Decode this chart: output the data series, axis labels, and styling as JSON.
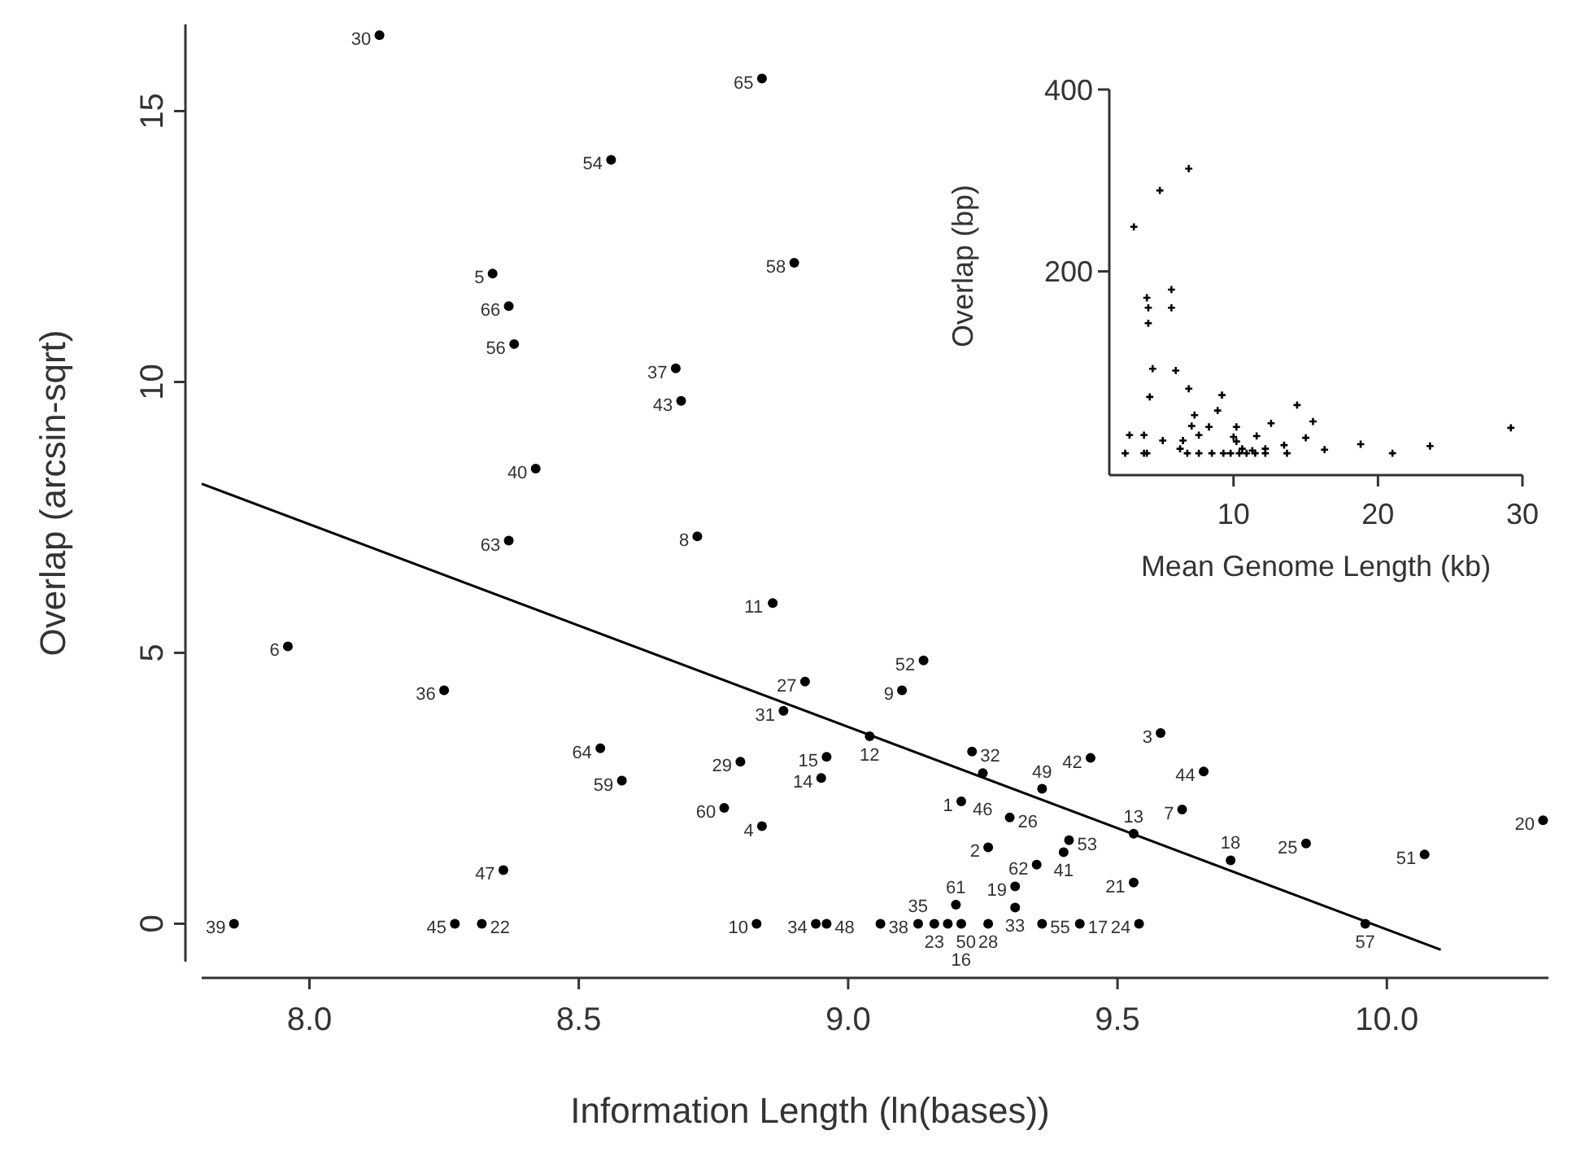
{
  "chart_data": [
    {
      "type": "scatter",
      "xlabel": "Information Length (ln(bases))",
      "ylabel": "Overlap (arcsin-sqrt)",
      "xlim": [
        7.8,
        10.3
      ],
      "ylim": [
        -0.7,
        16.6
      ],
      "xticks": [
        {
          "value": 8,
          "label": "8.0"
        },
        8.5,
        {
          "value": 9,
          "label": "9.0"
        },
        9.5,
        {
          "value": 10,
          "label": "10.0"
        }
      ],
      "yticks": [
        0,
        5,
        10,
        15
      ],
      "series": [
        {
          "color": "#000000",
          "x": [
            8.13,
            8.84,
            8.56,
            8.9,
            8.34,
            8.37,
            8.38,
            8.68,
            8.69,
            8.42,
            8.37,
            7.96,
            8.25,
            8.54,
            8.58,
            8.36,
            7.86,
            8.27,
            8.32,
            8.72,
            8.86,
            9.14,
            9.1,
            8.92,
            8.88,
            9.04,
            8.96,
            8.95,
            8.8,
            8.77,
            8.84,
            9.23,
            9.25,
            9.45,
            9.36,
            9.21,
            9.3,
            9.41,
            9.26,
            9.35,
            9.4,
            9.31,
            9.31,
            9.2,
            8.83,
            8.94,
            8.96,
            9.06,
            9.13,
            9.16,
            9.185,
            9.21,
            9.26,
            9.36,
            9.43,
            9.54,
            9.58,
            9.66,
            9.62,
            9.53,
            9.71,
            9.85,
            10.07,
            10.29,
            9.53,
            9.96
          ],
          "values": [
            16.4,
            15.6,
            14.1,
            12.2,
            12.0,
            11.4,
            10.7,
            10.25,
            9.65,
            8.4,
            7.07,
            5.12,
            4.31,
            3.24,
            2.64,
            0.99,
            0,
            0,
            0,
            7.15,
            5.92,
            4.86,
            4.31,
            4.47,
            3.93,
            3.46,
            3.08,
            2.69,
            2.99,
            2.14,
            1.8,
            3.18,
            2.78,
            3.06,
            2.49,
            2.26,
            1.96,
            1.54,
            1.41,
            1.09,
            1.32,
            0.69,
            0.3,
            0.35,
            0,
            0,
            0,
            0,
            0,
            0,
            0,
            0,
            0,
            0,
            0,
            0,
            3.52,
            2.81,
            2.11,
            1.66,
            1.17,
            1.48,
            1.28,
            1.91,
            0.76,
            0
          ]
        },
        {
          "type": "line",
          "marker": "none",
          "color": "#000000",
          "x": [
            7.8,
            10.1
          ],
          "values": [
            8.12,
            -0.48
          ]
        }
      ],
      "marker": "circle",
      "annotations": [
        {
          "text": "30",
          "x": 8.13,
          "y": 16.4
        },
        {
          "text": "65",
          "x": 8.84,
          "y": 15.6
        },
        {
          "text": "54",
          "x": 8.56,
          "y": 14.1
        },
        {
          "text": "58",
          "x": 8.9,
          "y": 12.2
        },
        {
          "text": "5",
          "x": 8.34,
          "y": 12.0
        },
        {
          "text": "66",
          "x": 8.37,
          "y": 11.4
        },
        {
          "text": "56",
          "x": 8.38,
          "y": 10.7
        },
        {
          "text": "37",
          "x": 8.68,
          "y": 10.25
        },
        {
          "text": "43",
          "x": 8.69,
          "y": 9.65
        },
        {
          "text": "40",
          "x": 8.42,
          "y": 8.4
        },
        {
          "text": "63",
          "x": 8.37,
          "y": 7.07
        },
        {
          "text": "6",
          "x": 7.96,
          "y": 5.12
        },
        {
          "text": "36",
          "x": 8.25,
          "y": 4.31
        },
        {
          "text": "64",
          "x": 8.54,
          "y": 3.24
        },
        {
          "text": "59",
          "x": 8.58,
          "y": 2.64
        },
        {
          "text": "47",
          "x": 8.36,
          "y": 0.99
        },
        {
          "text": "39",
          "x": 7.86,
          "y": 0
        },
        {
          "text": "45",
          "x": 8.27,
          "y": 0
        },
        {
          "text": "22",
          "x": 8.32,
          "y": 0
        },
        {
          "text": "8",
          "x": 8.72,
          "y": 7.15
        },
        {
          "text": "11",
          "x": 8.86,
          "y": 5.92
        },
        {
          "text": "52",
          "x": 9.14,
          "y": 4.86
        },
        {
          "text": "9",
          "x": 9.1,
          "y": 4.31
        },
        {
          "text": "27",
          "x": 8.92,
          "y": 4.47
        },
        {
          "text": "31",
          "x": 8.88,
          "y": 3.93
        },
        {
          "text": "12",
          "x": 9.04,
          "y": 3.46
        },
        {
          "text": "15",
          "x": 8.96,
          "y": 3.08
        },
        {
          "text": "14",
          "x": 8.95,
          "y": 2.69
        },
        {
          "text": "29",
          "x": 8.8,
          "y": 2.99
        },
        {
          "text": "60",
          "x": 8.77,
          "y": 2.14
        },
        {
          "text": "4",
          "x": 8.84,
          "y": 1.8
        },
        {
          "text": "32",
          "x": 9.23,
          "y": 3.18
        },
        {
          "text": "46",
          "x": 9.25,
          "y": 2.78
        },
        {
          "text": "42",
          "x": 9.45,
          "y": 3.06
        },
        {
          "text": "49",
          "x": 9.36,
          "y": 2.49
        },
        {
          "text": "1",
          "x": 9.21,
          "y": 2.26
        },
        {
          "text": "26",
          "x": 9.3,
          "y": 1.96
        },
        {
          "text": "53",
          "x": 9.41,
          "y": 1.54
        },
        {
          "text": "2",
          "x": 9.26,
          "y": 1.41
        },
        {
          "text": "62",
          "x": 9.35,
          "y": 1.09
        },
        {
          "text": "41",
          "x": 9.4,
          "y": 1.32
        },
        {
          "text": "19",
          "x": 9.31,
          "y": 0.69
        },
        {
          "text": "33",
          "x": 9.31,
          "y": 0.3
        },
        {
          "text": "61",
          "x": 9.2,
          "y": 0.35
        },
        {
          "text": "10",
          "x": 8.83,
          "y": 0
        },
        {
          "text": "34",
          "x": 8.94,
          "y": 0
        },
        {
          "text": "48",
          "x": 8.96,
          "y": 0
        },
        {
          "text": "38",
          "x": 9.06,
          "y": 0
        },
        {
          "text": "35",
          "x": 9.13,
          "y": 0
        },
        {
          "text": "23",
          "x": 9.16,
          "y": 0
        },
        {
          "text": "50",
          "x": 9.185,
          "y": 0
        },
        {
          "text": "16",
          "x": 9.21,
          "y": 0
        },
        {
          "text": "28",
          "x": 9.26,
          "y": 0
        },
        {
          "text": "55",
          "x": 9.36,
          "y": 0
        },
        {
          "text": "17",
          "x": 9.43,
          "y": 0
        },
        {
          "text": "24",
          "x": 9.54,
          "y": 0
        },
        {
          "text": "3",
          "x": 9.58,
          "y": 3.52
        },
        {
          "text": "44",
          "x": 9.66,
          "y": 2.81
        },
        {
          "text": "7",
          "x": 9.62,
          "y": 2.11
        },
        {
          "text": "13",
          "x": 9.53,
          "y": 1.66
        },
        {
          "text": "18",
          "x": 9.71,
          "y": 1.17
        },
        {
          "text": "25",
          "x": 9.85,
          "y": 1.48
        },
        {
          "text": "51",
          "x": 10.07,
          "y": 1.28
        },
        {
          "text": "20",
          "x": 10.29,
          "y": 1.91
        },
        {
          "text": "21",
          "x": 9.53,
          "y": 0.76
        },
        {
          "text": "57",
          "x": 9.96,
          "y": 0
        }
      ]
    },
    {
      "type": "scatter",
      "xlabel": "Mean Genome Length (kb)",
      "ylabel": "Overlap (bp)",
      "xlim": [
        1.4,
        30
      ],
      "ylim": [
        -24,
        400
      ],
      "xticks": [
        10,
        20,
        30
      ],
      "yticks": [
        200,
        400
      ],
      "series": [
        {
          "marker": "cross",
          "color": "#000000",
          "x": [
            2.5,
            2.8,
            3.8,
            3.1,
            4.9,
            6.9,
            4.0,
            4.1,
            4.1,
            5.7,
            5.7,
            4.4,
            6.0,
            4.2,
            6.9,
            9.2,
            7.3,
            8.9,
            7.1,
            8.3,
            7.6,
            5.1,
            6.5,
            6.3,
            10.2,
            10.2,
            12.6,
            14.4,
            15.5,
            15.0,
            11.6,
            13.5,
            16.3,
            18.8,
            21.0,
            23.6,
            29.2,
            4.0,
            3.8,
            6.8,
            7.6,
            8.5,
            9.3,
            9.8,
            10.4,
            10.9,
            11.5,
            12.2,
            13.7,
            10.6,
            11.3,
            12.2,
            10.0
          ],
          "values": [
            0,
            20,
            20,
            249,
            289,
            313,
            171,
            160,
            143,
            180,
            160,
            93,
            91,
            62,
            71,
            64,
            42,
            47,
            30,
            29,
            20,
            14,
            14,
            5,
            29,
            13,
            33,
            53,
            35,
            17,
            19,
            9,
            4,
            10,
            0,
            8,
            28,
            0,
            0,
            0,
            0,
            0,
            0,
            0,
            0,
            0,
            0,
            0,
            0,
            5,
            3,
            5,
            18
          ]
        }
      ]
    }
  ]
}
